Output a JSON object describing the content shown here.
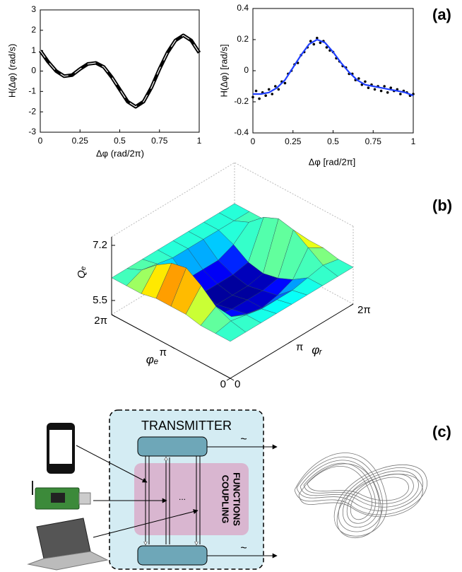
{
  "chart_data": [
    {
      "type": "line",
      "xlabel": "Δφ (rad/2π)",
      "ylabel": "H(Δφ) (rad/s)",
      "xlim": [
        0,
        1
      ],
      "ylim": [
        -3,
        3
      ],
      "xticks": [
        0,
        0.25,
        0.5,
        0.75,
        1
      ],
      "yticks": [
        -3,
        -2,
        -1,
        0,
        1,
        2,
        3
      ],
      "series": [
        {
          "type": "line",
          "color": "#000000",
          "x": [
            0,
            0.05,
            0.1,
            0.15,
            0.2,
            0.25,
            0.3,
            0.35,
            0.4,
            0.45,
            0.5,
            0.55,
            0.6,
            0.65,
            0.7,
            0.75,
            0.8,
            0.85,
            0.9,
            0.95,
            1
          ],
          "values": [
            1.0,
            0.45,
            0.0,
            -0.25,
            -0.2,
            0.1,
            0.35,
            0.4,
            0.2,
            -0.3,
            -0.9,
            -1.5,
            -1.75,
            -1.5,
            -0.8,
            0.1,
            0.9,
            1.5,
            1.75,
            1.5,
            0.9
          ]
        }
      ]
    },
    {
      "type": "line",
      "xlabel": "Δφ [rad/2π]",
      "ylabel": "H(Δφ) [rad/s]",
      "xlim": [
        0,
        1
      ],
      "ylim": [
        -0.4,
        0.4
      ],
      "xticks": [
        0,
        0.25,
        0.5,
        0.75,
        1
      ],
      "yticks": [
        -0.4,
        -0.2,
        0,
        0.2,
        0.4
      ],
      "series": [
        {
          "type": "scatter",
          "color": "#000000",
          "x": [
            0,
            0.02,
            0.04,
            0.06,
            0.08,
            0.1,
            0.12,
            0.14,
            0.16,
            0.18,
            0.2,
            0.22,
            0.24,
            0.26,
            0.28,
            0.3,
            0.32,
            0.34,
            0.36,
            0.38,
            0.4,
            0.42,
            0.44,
            0.46,
            0.48,
            0.5,
            0.52,
            0.54,
            0.56,
            0.58,
            0.6,
            0.62,
            0.64,
            0.66,
            0.68,
            0.7,
            0.72,
            0.74,
            0.76,
            0.78,
            0.8,
            0.82,
            0.84,
            0.86,
            0.88,
            0.9,
            0.92,
            0.94,
            0.96,
            0.98,
            1
          ],
          "values": [
            -0.17,
            -0.13,
            -0.18,
            -0.14,
            -0.16,
            -0.12,
            -0.15,
            -0.1,
            -0.12,
            -0.07,
            -0.08,
            -0.02,
            0.0,
            0.04,
            0.05,
            0.1,
            0.12,
            0.15,
            0.19,
            0.17,
            0.21,
            0.18,
            0.19,
            0.15,
            0.13,
            0.12,
            0.08,
            0.06,
            0.03,
            0.02,
            -0.02,
            -0.02,
            -0.06,
            -0.05,
            -0.09,
            -0.07,
            -0.11,
            -0.09,
            -0.12,
            -0.1,
            -0.13,
            -0.1,
            -0.14,
            -0.11,
            -0.13,
            -0.12,
            -0.15,
            -0.13,
            -0.14,
            -0.16,
            -0.15
          ]
        },
        {
          "type": "line",
          "color": "#1f3fff",
          "x": [
            0,
            0.05,
            0.1,
            0.15,
            0.2,
            0.25,
            0.3,
            0.35,
            0.4,
            0.45,
            0.5,
            0.55,
            0.6,
            0.65,
            0.7,
            0.75,
            0.8,
            0.85,
            0.9,
            0.95,
            1
          ],
          "values": [
            -0.15,
            -0.15,
            -0.14,
            -0.11,
            -0.06,
            0.02,
            0.1,
            0.17,
            0.2,
            0.18,
            0.12,
            0.05,
            -0.01,
            -0.06,
            -0.09,
            -0.1,
            -0.11,
            -0.12,
            -0.13,
            -0.14,
            -0.16
          ]
        }
      ]
    },
    {
      "type": "surface",
      "xlabel": "φₑ",
      "ylabel": "φᵣ",
      "zlabel": "Qₑ",
      "xlim": [
        0,
        6.283185
      ],
      "ylim": [
        0,
        6.283185
      ],
      "zlim": [
        5.5,
        7.2
      ],
      "xticks": [
        0,
        {
          "value": 3.141593,
          "label": "π"
        },
        {
          "value": 6.283185,
          "label": "2π"
        }
      ],
      "yticks": [
        0,
        {
          "value": 3.141593,
          "label": "π"
        },
        {
          "value": 6.283185,
          "label": "2π"
        }
      ],
      "zticks": [
        5.5,
        7.2
      ],
      "x": [
        0,
        0.785,
        1.571,
        2.356,
        3.142,
        3.927,
        4.712,
        5.498,
        6.283
      ],
      "y": [
        0,
        0.785,
        1.571,
        2.356,
        3.142,
        3.927,
        4.712,
        5.498,
        6.283
      ],
      "z": [
        [
          6.2,
          6.2,
          6.2,
          6.2,
          6.2,
          6.2,
          6.2,
          6.2,
          6.2
        ],
        [
          6.2,
          6.3,
          6.2,
          6.1,
          6.1,
          6.1,
          6.2,
          6.3,
          6.2
        ],
        [
          6.2,
          6.5,
          5.9,
          5.7,
          5.6,
          5.7,
          5.9,
          6.6,
          6.3
        ],
        [
          6.3,
          6.9,
          5.7,
          5.6,
          5.6,
          5.6,
          5.7,
          6.9,
          6.3
        ],
        [
          6.3,
          7.2,
          5.6,
          5.5,
          5.5,
          5.5,
          5.6,
          7.0,
          6.3
        ],
        [
          6.3,
          7.1,
          5.7,
          5.6,
          5.6,
          5.6,
          5.7,
          6.8,
          6.2
        ],
        [
          6.2,
          6.8,
          6.0,
          5.8,
          5.8,
          5.8,
          6.0,
          6.4,
          6.2
        ],
        [
          6.2,
          6.4,
          6.3,
          6.2,
          6.2,
          6.2,
          6.2,
          6.2,
          6.2
        ],
        [
          6.2,
          6.2,
          6.2,
          6.2,
          6.2,
          6.2,
          6.2,
          6.2,
          6.2
        ]
      ]
    }
  ],
  "panel_labels": [
    "(a)",
    "(b)",
    "(c)"
  ],
  "diagram": {
    "transmitter": "TRANSMITTER",
    "coupling_functions": [
      "COUPLING",
      "FUNCTIONS"
    ],
    "ellipsis": "...",
    "signals": [
      "~",
      "~"
    ]
  }
}
